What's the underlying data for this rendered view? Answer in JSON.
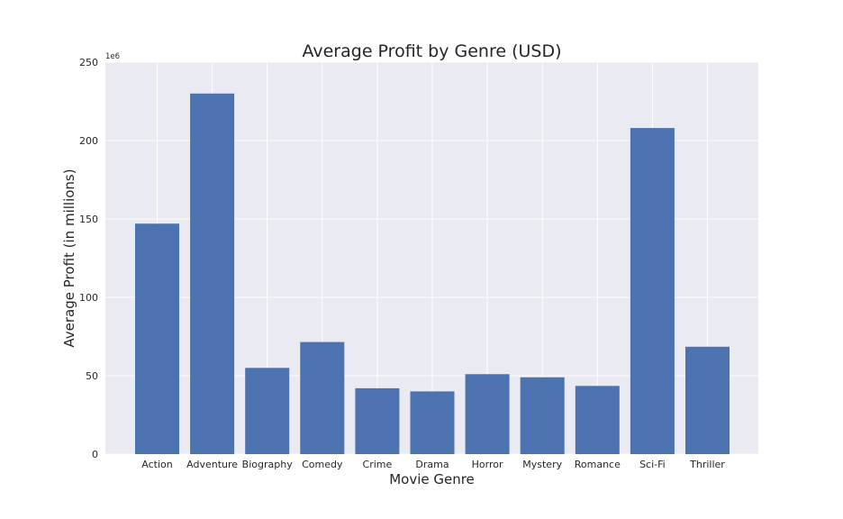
{
  "chart_data": {
    "type": "bar",
    "title": "Average Profit by Genre (USD)",
    "xlabel": "Movie Genre",
    "ylabel": "Average Profit (in millions)",
    "y_offset_label": "1e6",
    "categories": [
      "Action",
      "Adventure",
      "Biography",
      "Comedy",
      "Crime",
      "Drama",
      "Horror",
      "Mystery",
      "Romance",
      "Sci-Fi",
      "Thriller"
    ],
    "values": [
      147000000,
      230000000,
      55000000,
      71500000,
      42000000,
      40000000,
      51000000,
      49000000,
      43500000,
      208000000,
      68500000
    ],
    "ylim": [
      0,
      250000000
    ],
    "yticks": [
      0,
      50000000,
      100000000,
      150000000,
      200000000,
      250000000
    ],
    "ytick_labels": [
      "0",
      "50",
      "100",
      "150",
      "200",
      "250"
    ],
    "grid": true,
    "style": "seaborn-darkgrid",
    "colors": {
      "bar": "#4c72b0",
      "plot_background": "#eaeaf2",
      "grid": "#ffffff",
      "text": "#262626"
    }
  }
}
